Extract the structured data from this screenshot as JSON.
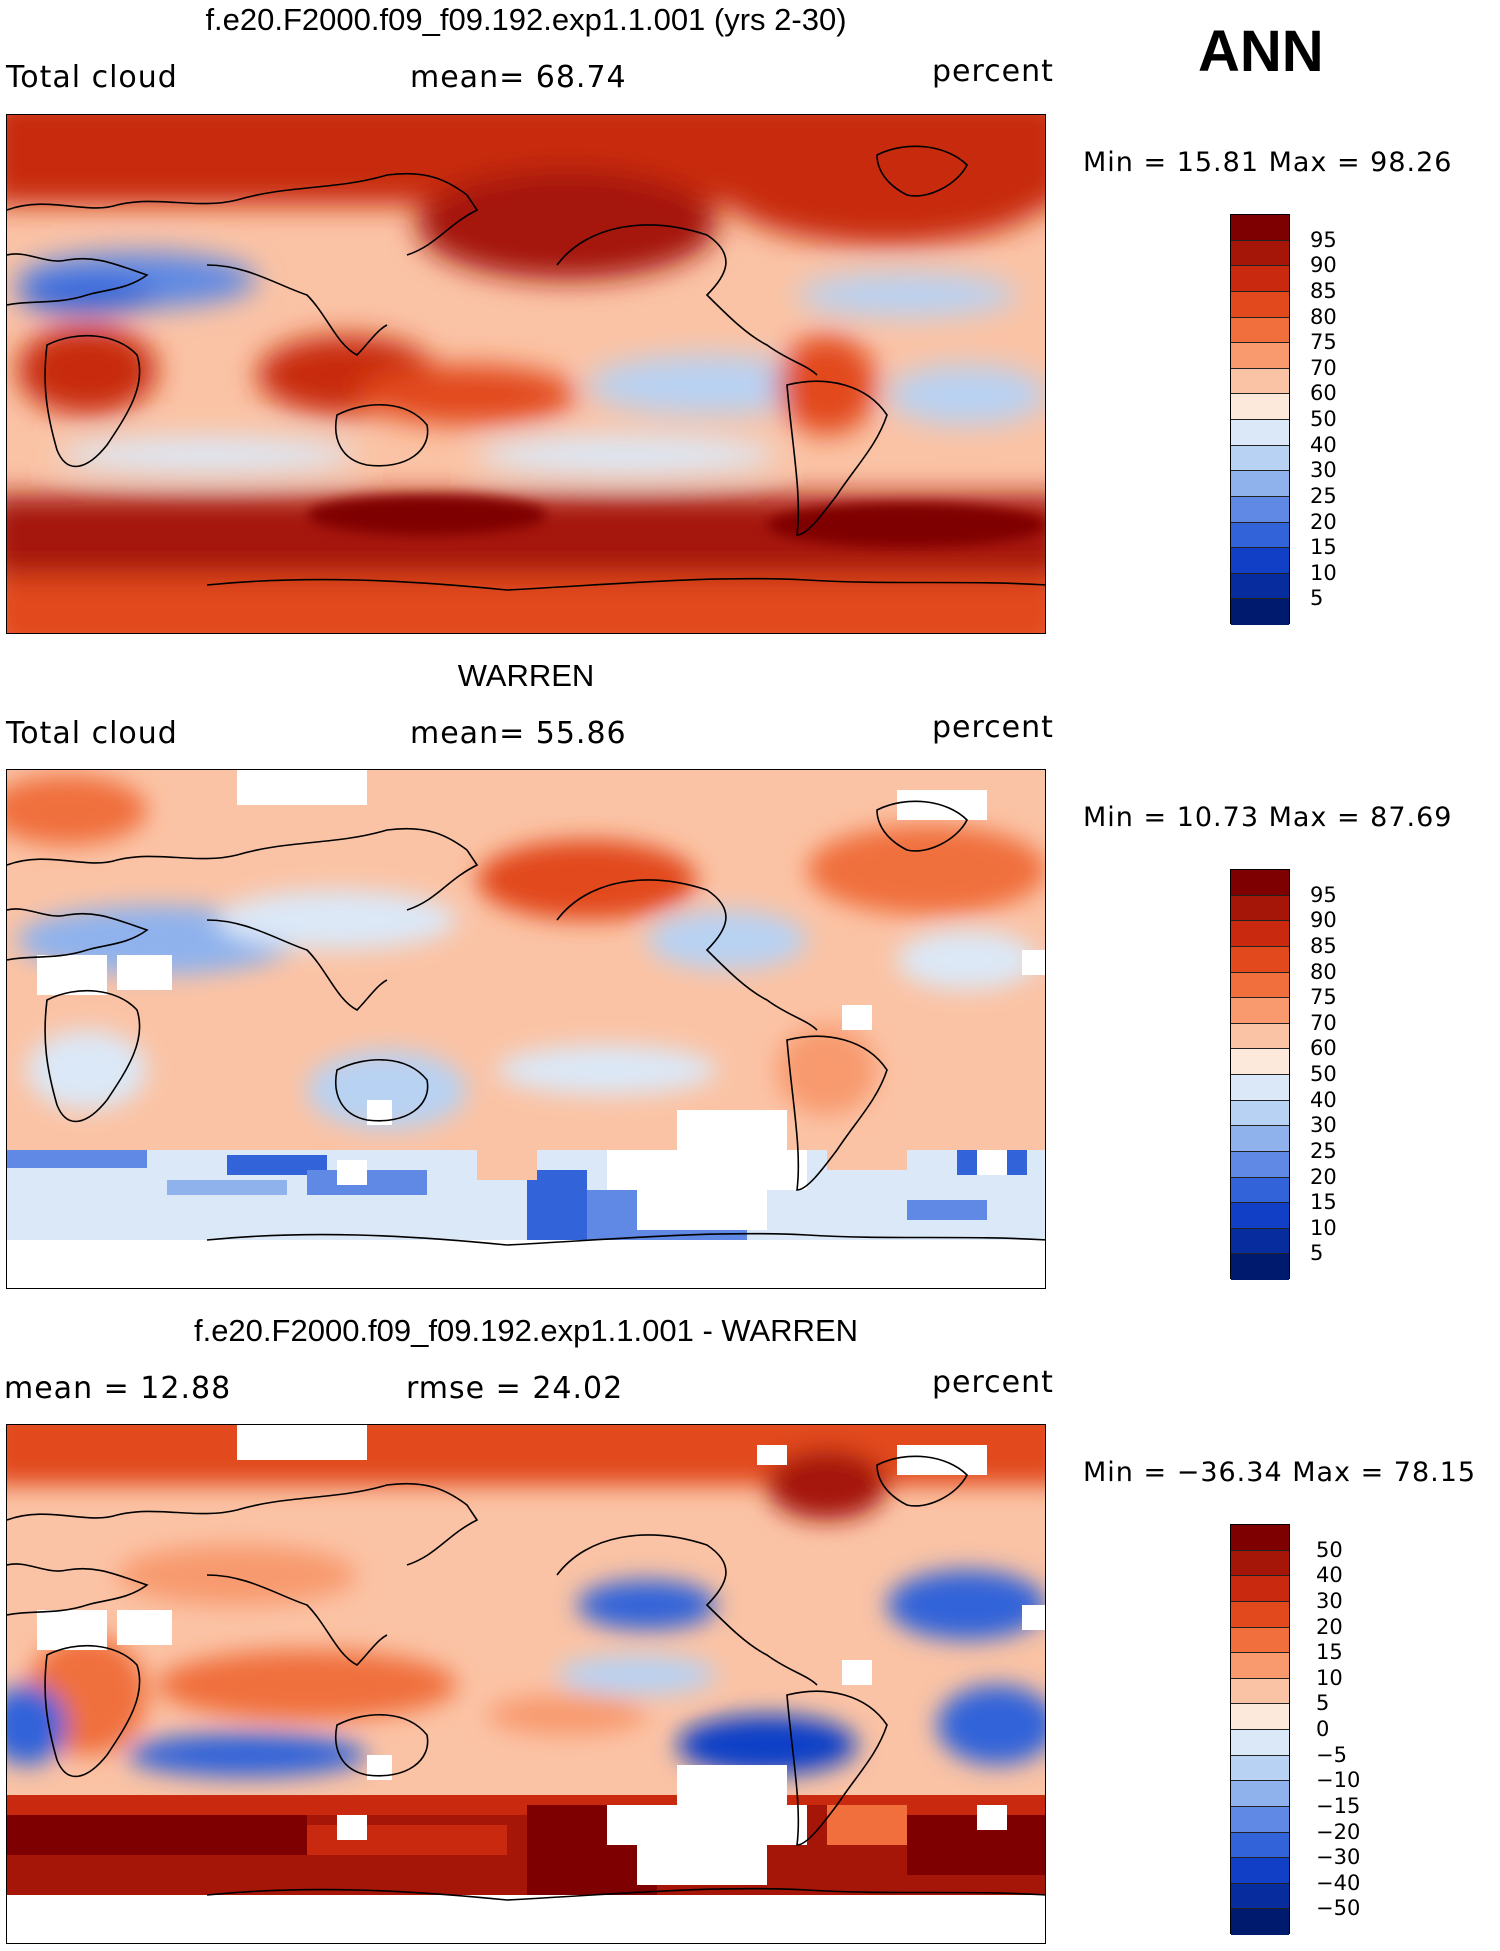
{
  "season": "ANN",
  "panels": [
    {
      "title": "f.e20.F2000.f09_f09.192.exp1.1.001 (yrs 2-30)",
      "left_label": "Total cloud",
      "center_label": "mean=   68.74",
      "right_label": "percent",
      "minmax": "Min =   15.81  Max =   98.26",
      "colorbar_labels": [
        "95",
        "90",
        "85",
        "80",
        "75",
        "70",
        "60",
        "50",
        "40",
        "30",
        "25",
        "20",
        "15",
        "10",
        "5"
      ],
      "colorbar_colors": [
        "#7f0000",
        "#a51508",
        "#c8290f",
        "#e24a1e",
        "#f06f3c",
        "#f89a6e",
        "#fbc3a5",
        "#fde8dc",
        "#dbe8f7",
        "#b8d2f3",
        "#8fb2ed",
        "#5f89e4",
        "#3363d9",
        "#1140c7",
        "#062c9e",
        "#001a6e"
      ]
    },
    {
      "title": "WARREN",
      "left_label": "Total cloud",
      "center_label": "mean=   55.86",
      "right_label": "percent",
      "minmax": "Min =   10.73  Max =   87.69",
      "colorbar_labels": [
        "95",
        "90",
        "85",
        "80",
        "75",
        "70",
        "60",
        "50",
        "40",
        "30",
        "25",
        "20",
        "15",
        "10",
        "5"
      ],
      "colorbar_colors": [
        "#7f0000",
        "#a51508",
        "#c8290f",
        "#e24a1e",
        "#f06f3c",
        "#f89a6e",
        "#fbc3a5",
        "#fde8dc",
        "#dbe8f7",
        "#b8d2f3",
        "#8fb2ed",
        "#5f89e4",
        "#3363d9",
        "#1140c7",
        "#062c9e",
        "#001a6e"
      ]
    },
    {
      "title": "f.e20.F2000.f09_f09.192.exp1.1.001 - WARREN",
      "left_label": "mean =    12.88",
      "center_label": "rmse =    24.02",
      "right_label": "percent",
      "minmax": "Min = −36.34  Max =    78.15",
      "colorbar_labels": [
        "50",
        "40",
        "30",
        "20",
        "15",
        "10",
        "5",
        "0",
        "−5",
        "−10",
        "−15",
        "−20",
        "−30",
        "−40",
        "−50"
      ],
      "colorbar_colors": [
        "#7f0000",
        "#a51508",
        "#c8290f",
        "#e24a1e",
        "#f06f3c",
        "#f89a6e",
        "#fbc3a5",
        "#fde8dc",
        "#dbe8f7",
        "#b8d2f3",
        "#8fb2ed",
        "#5f89e4",
        "#3363d9",
        "#1140c7",
        "#062c9e",
        "#001a6e"
      ]
    }
  ]
}
